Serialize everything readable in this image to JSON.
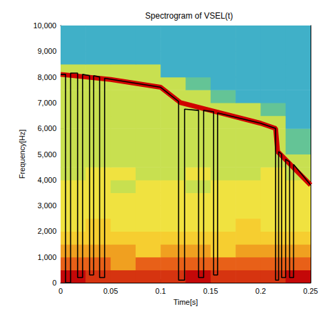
{
  "chart_data": {
    "type": "spectrogram",
    "title": "Spectrogram of VSEL(t)",
    "x_label": "Time[s]",
    "y_label": "Frequency[Hz]",
    "xlim": [
      0,
      0.25
    ],
    "xticks": [
      0,
      0.05,
      0.1,
      0.15,
      0.2,
      0.25
    ],
    "ylim": [
      0,
      10000
    ],
    "yticks": [
      0,
      1000,
      2000,
      3000,
      4000,
      5000,
      6000,
      7000,
      8000,
      9000,
      10000
    ],
    "grid": false,
    "time_bins": [
      0,
      0.025,
      0.05,
      0.075,
      0.1,
      0.125,
      0.15,
      0.175,
      0.2,
      0.225,
      0.25
    ],
    "freq_bins": [
      0,
      500,
      1000,
      1500,
      2000,
      2500,
      3000,
      3500,
      4000,
      4500,
      5000,
      5500,
      6000,
      6500,
      7000,
      7500,
      8000,
      8500,
      9000,
      9500,
      10000
    ],
    "color_range": [
      0,
      10
    ],
    "cells": [
      [
        10,
        9,
        9,
        9,
        9,
        10,
        9,
        9,
        9,
        10
      ],
      [
        8,
        8,
        7,
        8,
        8,
        8,
        8,
        8,
        8,
        8
      ],
      [
        7,
        7,
        7,
        6,
        7,
        7,
        6,
        7,
        7,
        7
      ],
      [
        6,
        6,
        6,
        6,
        6,
        6,
        6,
        6,
        6,
        6
      ],
      [
        5,
        6,
        5,
        5,
        5,
        5,
        5,
        6,
        5,
        5
      ],
      [
        5,
        5,
        5,
        5,
        5,
        5,
        5,
        5,
        5,
        5
      ],
      [
        5,
        5,
        5,
        5,
        5,
        5,
        5,
        5,
        5,
        5
      ],
      [
        5,
        5,
        4,
        5,
        5,
        4,
        5,
        5,
        5,
        5
      ],
      [
        4,
        5,
        5,
        4,
        4,
        5,
        4,
        4,
        5,
        4
      ],
      [
        4,
        4,
        4,
        4,
        4,
        4,
        4,
        4,
        4,
        4
      ],
      [
        4,
        4,
        4,
        4,
        4,
        4,
        4,
        4,
        4,
        3
      ],
      [
        4,
        4,
        4,
        4,
        4,
        4,
        4,
        4,
        4,
        3
      ],
      [
        4,
        4,
        4,
        4,
        4,
        4,
        4,
        4,
        4,
        2
      ],
      [
        4,
        4,
        4,
        4,
        4,
        4,
        4,
        4,
        3,
        2
      ],
      [
        4,
        4,
        4,
        4,
        4,
        4,
        3,
        2,
        2,
        2
      ],
      [
        4,
        4,
        4,
        4,
        4,
        3,
        2,
        2,
        2,
        2
      ],
      [
        4,
        4,
        4,
        4,
        2,
        2,
        2,
        2,
        2,
        2
      ],
      [
        2,
        2,
        2,
        2,
        2,
        2,
        2,
        2,
        2,
        2
      ],
      [
        2,
        2,
        2,
        2,
        2,
        2,
        2,
        2,
        2,
        2
      ],
      [
        2,
        2,
        2,
        2,
        2,
        2,
        2,
        2,
        2,
        2
      ]
    ],
    "series": [
      {
        "type": "line",
        "color": "#d00000",
        "line_style": "solid",
        "x": [
          0,
          0.05,
          0.1,
          0.12,
          0.15,
          0.2,
          0.215,
          0.217,
          0.25
        ],
        "values": [
          8100,
          7900,
          7600,
          7000,
          6700,
          6200,
          6000,
          5100,
          3800
        ]
      },
      {
        "type": "line",
        "color": "#000000",
        "line_style": "solid",
        "x": [
          0,
          0.005,
          0.005,
          0.01,
          0.01,
          0.017,
          0.017,
          0.022,
          0.022,
          0.029,
          0.029,
          0.033,
          0.033,
          0.039,
          0.039,
          0.044,
          0.044,
          0.1,
          0.118,
          0.118,
          0.124,
          0.124,
          0.138,
          0.138,
          0.143,
          0.143,
          0.153,
          0.153,
          0.157,
          0.157,
          0.2,
          0.215,
          0.215,
          0.218,
          0.218,
          0.221,
          0.221,
          0.225,
          0.225,
          0.229,
          0.229,
          0.233,
          0.233,
          0.25
        ],
        "values": [
          8100,
          8100,
          0,
          0,
          8150,
          8150,
          200,
          200,
          8100,
          8050,
          300,
          300,
          8050,
          8000,
          200,
          200,
          7950,
          7600,
          7050,
          100,
          100,
          6750,
          6700,
          200,
          200,
          6700,
          6650,
          300,
          300,
          6600,
          6200,
          6000,
          100,
          100,
          5100,
          5000,
          200,
          200,
          4800,
          4700,
          200,
          200,
          4600,
          3800
        ]
      }
    ]
  }
}
